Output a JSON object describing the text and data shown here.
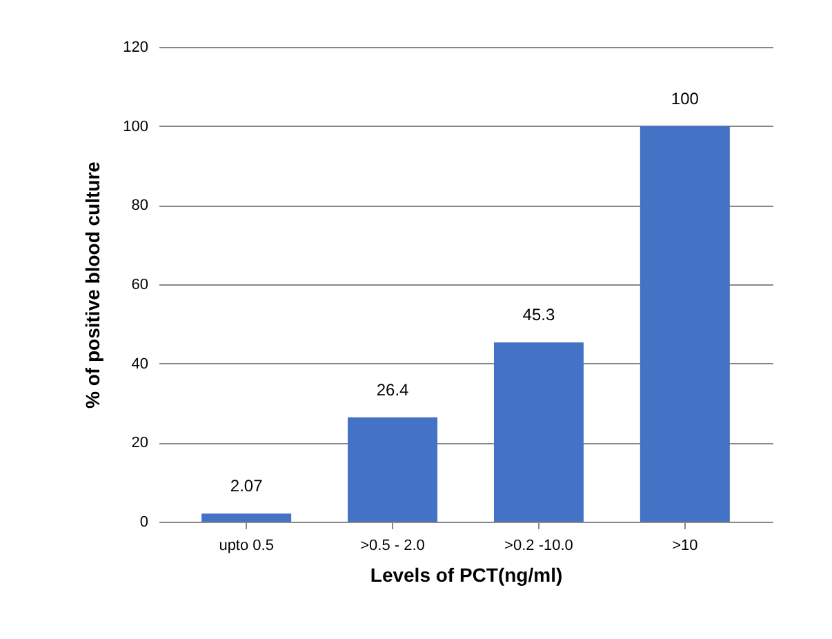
{
  "chart_data": {
    "type": "bar",
    "xlabel": "Levels of PCT(ng/ml)",
    "ylabel": "% of positive blood culture",
    "categories": [
      "upto  0.5",
      ">0.5 - 2.0",
      ">0.2 -10.0",
      ">10"
    ],
    "values": [
      2.07,
      26.4,
      45.3,
      100
    ],
    "color": "#4472c4",
    "ylim": [
      0,
      120
    ],
    "yticks": [
      0,
      20,
      40,
      60,
      80,
      100,
      120
    ],
    "grid": "y",
    "data_labels": true
  }
}
